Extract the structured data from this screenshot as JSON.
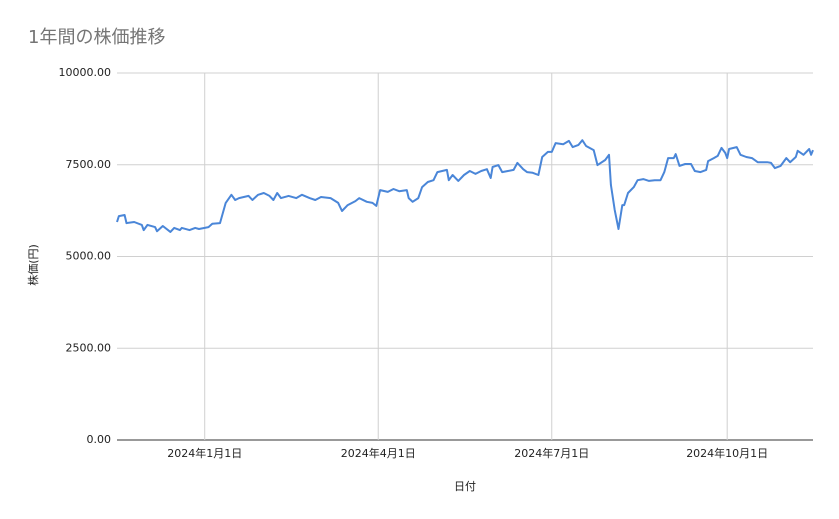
{
  "chart_data": {
    "type": "line",
    "title": "1年間の株価推移",
    "x_label": "日付",
    "y_label": "株価(円)",
    "x": [
      "2023-11-16",
      "2023-11-17",
      "2023-11-20",
      "2023-11-21",
      "2023-11-25",
      "2023-11-29",
      "2023-11-30",
      "2023-12-02",
      "2023-12-06",
      "2023-12-07",
      "2023-12-10",
      "2023-12-14",
      "2023-12-16",
      "2023-12-19",
      "2023-12-20",
      "2023-12-24",
      "2023-12-27",
      "2023-12-29",
      "2024-01-03",
      "2024-01-05",
      "2024-01-09",
      "2024-01-12",
      "2024-01-15",
      "2024-01-17",
      "2024-01-19",
      "2024-01-24",
      "2024-01-26",
      "2024-01-29",
      "2024-02-01",
      "2024-02-04",
      "2024-02-06",
      "2024-02-08",
      "2024-02-10",
      "2024-02-14",
      "2024-02-18",
      "2024-02-21",
      "2024-02-25",
      "2024-02-28",
      "2024-03-02",
      "2024-03-07",
      "2024-03-11",
      "2024-03-13",
      "2024-03-16",
      "2024-03-20",
      "2024-03-22",
      "2024-03-26",
      "2024-03-29",
      "2024-03-31",
      "2024-04-02",
      "2024-04-06",
      "2024-04-09",
      "2024-04-12",
      "2024-04-16",
      "2024-04-17",
      "2024-04-19",
      "2024-04-22",
      "2024-04-24",
      "2024-04-27",
      "2024-04-30",
      "2024-05-02",
      "2024-05-07",
      "2024-05-08",
      "2024-05-10",
      "2024-05-13",
      "2024-05-16",
      "2024-05-19",
      "2024-05-22",
      "2024-05-25",
      "2024-05-28",
      "2024-05-30",
      "2024-05-31",
      "2024-06-03",
      "2024-06-05",
      "2024-06-08",
      "2024-06-11",
      "2024-06-13",
      "2024-06-16",
      "2024-06-18",
      "2024-06-21",
      "2024-06-24",
      "2024-06-26",
      "2024-06-29",
      "2024-07-01",
      "2024-07-03",
      "2024-07-07",
      "2024-07-10",
      "2024-07-12",
      "2024-07-15",
      "2024-07-17",
      "2024-07-19",
      "2024-07-23",
      "2024-07-25",
      "2024-07-29",
      "2024-07-31",
      "2024-08-01",
      "2024-08-03",
      "2024-08-05",
      "2024-08-07",
      "2024-08-08",
      "2024-08-10",
      "2024-08-13",
      "2024-08-15",
      "2024-08-18",
      "2024-08-21",
      "2024-08-24",
      "2024-08-27",
      "2024-08-29",
      "2024-08-31",
      "2024-09-03",
      "2024-09-04",
      "2024-09-06",
      "2024-09-09",
      "2024-09-12",
      "2024-09-14",
      "2024-09-17",
      "2024-09-20",
      "2024-09-21",
      "2024-09-24",
      "2024-09-26",
      "2024-09-28",
      "2024-09-30",
      "2024-10-01",
      "2024-10-02",
      "2024-10-06",
      "2024-10-08",
      "2024-10-11",
      "2024-10-14",
      "2024-10-17",
      "2024-10-22",
      "2024-10-24",
      "2024-10-26",
      "2024-10-29",
      "2024-11-01",
      "2024-11-03",
      "2024-11-06",
      "2024-11-07",
      "2024-11-10",
      "2024-11-13",
      "2024-11-14",
      "2024-11-15"
    ],
    "series": [
      {
        "name": "株価",
        "color": "#4a86d8",
        "values": [
          5940,
          6100,
          6130,
          5910,
          5940,
          5860,
          5720,
          5860,
          5800,
          5690,
          5830,
          5670,
          5780,
          5720,
          5780,
          5720,
          5780,
          5750,
          5800,
          5890,
          5910,
          6460,
          6680,
          6540,
          6590,
          6650,
          6540,
          6680,
          6730,
          6650,
          6540,
          6730,
          6590,
          6650,
          6590,
          6680,
          6590,
          6540,
          6620,
          6590,
          6460,
          6240,
          6400,
          6510,
          6590,
          6490,
          6460,
          6380,
          6810,
          6760,
          6840,
          6780,
          6810,
          6590,
          6490,
          6590,
          6890,
          7030,
          7080,
          7300,
          7360,
          7080,
          7220,
          7060,
          7220,
          7330,
          7250,
          7330,
          7380,
          7140,
          7440,
          7490,
          7300,
          7330,
          7360,
          7550,
          7380,
          7300,
          7280,
          7220,
          7710,
          7850,
          7850,
          8090,
          8060,
          8150,
          7980,
          8040,
          8170,
          8010,
          7900,
          7490,
          7630,
          7770,
          6950,
          6270,
          5750,
          6400,
          6400,
          6730,
          6890,
          7080,
          7110,
          7060,
          7080,
          7080,
          7300,
          7680,
          7680,
          7790,
          7470,
          7520,
          7520,
          7330,
          7300,
          7360,
          7600,
          7680,
          7740,
          7960,
          7820,
          7680,
          7930,
          7980,
          7770,
          7710,
          7680,
          7570,
          7570,
          7550,
          7410,
          7470,
          7680,
          7570,
          7710,
          7880,
          7770,
          7930,
          7770,
          7900
        ]
      }
    ],
    "xlim": [
      "2023-11-16",
      "2024-11-15"
    ],
    "xticks": [
      {
        "value": "2024-01-01",
        "label": "2024年1月1日"
      },
      {
        "value": "2024-04-01",
        "label": "2024年4月1日"
      },
      {
        "value": "2024-07-01",
        "label": "2024年7月1日"
      },
      {
        "value": "2024-10-01",
        "label": "2024年10月1日"
      }
    ],
    "ylim": [
      0,
      10000
    ],
    "yticks": [
      {
        "value": 0,
        "label": "0.00"
      },
      {
        "value": 2500,
        "label": "2500.00"
      },
      {
        "value": 5000,
        "label": "5000.00"
      },
      {
        "value": 7500,
        "label": "7500.00"
      },
      {
        "value": 10000,
        "label": "10000.00"
      }
    ],
    "grid": true
  }
}
